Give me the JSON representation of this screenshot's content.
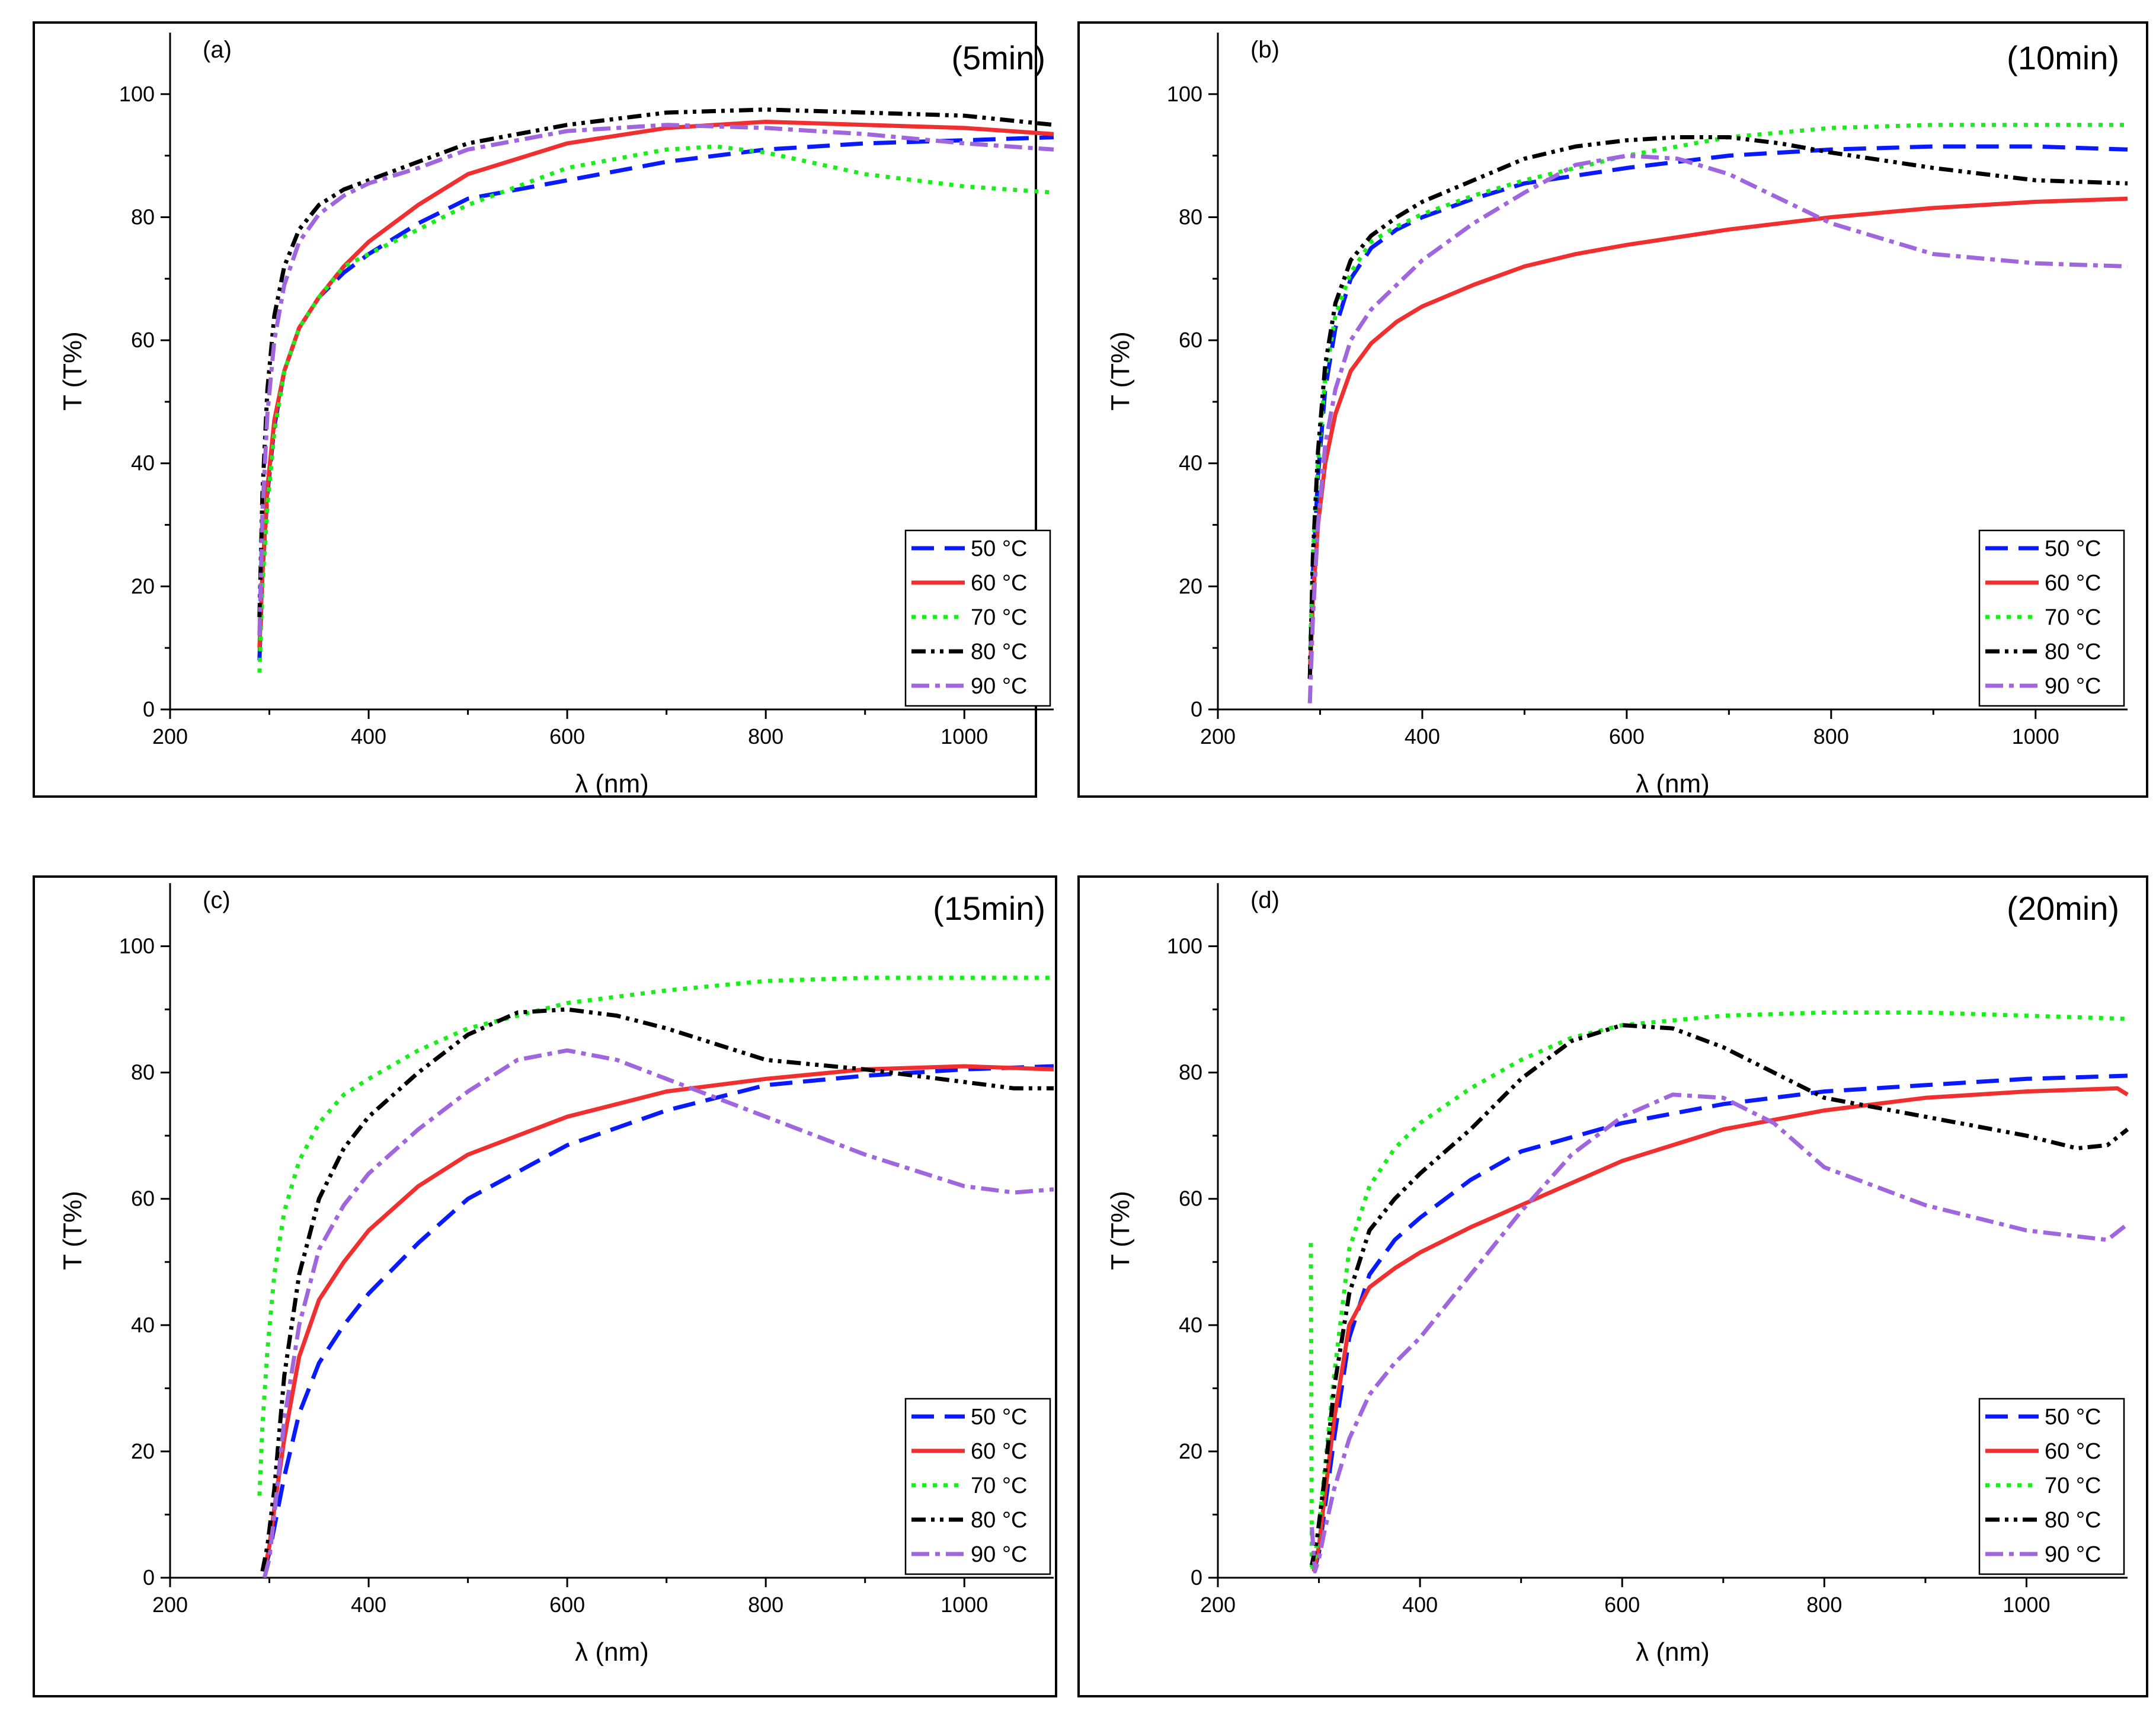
{
  "colors": {
    "50": "#0a1aff",
    "60": "#f03030",
    "70": "#1aee1a",
    "80": "#000000",
    "90": "#a066dd"
  },
  "dash_styles": {
    "50": "long-dash",
    "60": "solid",
    "70": "dot",
    "80": "dash-dot-dot",
    "90": "dash-dot"
  },
  "chart_data": [
    {
      "type": "line",
      "panel": "(a)",
      "title": "(5min)",
      "xlabel": "λ (nm)",
      "ylabel": "T (T%)",
      "xlim": [
        200,
        1090
      ],
      "ylim": [
        0,
        110
      ],
      "xticks": [
        200,
        400,
        600,
        800,
        1000
      ],
      "yticks": [
        0,
        20,
        40,
        60,
        80,
        100
      ],
      "legend_position": "bottom-right",
      "series": [
        {
          "name": "50 °C",
          "key": "50",
          "x": [
            290,
            293,
            298,
            305,
            315,
            330,
            350,
            375,
            400,
            450,
            500,
            600,
            700,
            800,
            900,
            1000,
            1090
          ],
          "values": [
            8,
            22,
            35,
            46,
            55,
            62,
            67,
            71,
            74,
            79,
            83,
            86,
            89,
            91,
            92,
            92.5,
            93
          ]
        },
        {
          "name": "60 °C",
          "key": "60",
          "x": [
            290,
            293,
            298,
            305,
            315,
            330,
            350,
            375,
            400,
            450,
            500,
            600,
            700,
            800,
            900,
            1000,
            1090
          ],
          "values": [
            10,
            22,
            36,
            47,
            55,
            62,
            67,
            72,
            76,
            82,
            87,
            92,
            94.5,
            95.5,
            95,
            94.5,
            93.5
          ]
        },
        {
          "name": "70 °C",
          "key": "70",
          "x": [
            290,
            293,
            298,
            305,
            315,
            330,
            350,
            375,
            400,
            450,
            500,
            600,
            700,
            750,
            800,
            900,
            1000,
            1090
          ],
          "values": [
            6,
            20,
            33,
            45,
            55,
            62,
            67,
            72,
            74,
            78,
            82,
            88,
            91,
            91.5,
            90.5,
            87,
            85,
            84
          ]
        },
        {
          "name": "80 °C",
          "key": "80",
          "x": [
            290,
            293,
            298,
            305,
            315,
            330,
            350,
            375,
            400,
            450,
            500,
            600,
            700,
            800,
            900,
            1000,
            1090
          ],
          "values": [
            15,
            35,
            52,
            64,
            72,
            78,
            82,
            84.5,
            86,
            89,
            92,
            95,
            97,
            97.5,
            97,
            96.5,
            95
          ]
        },
        {
          "name": "90 °C",
          "key": "90",
          "x": [
            290,
            293,
            298,
            305,
            315,
            330,
            350,
            375,
            400,
            450,
            500,
            600,
            700,
            800,
            900,
            1000,
            1090
          ],
          "values": [
            12,
            32,
            48,
            60,
            69,
            76,
            80.5,
            83.5,
            85.5,
            88,
            91,
            94,
            95,
            94.5,
            93.5,
            92,
            91
          ]
        }
      ]
    },
    {
      "type": "line",
      "panel": "(b)",
      "title": "(10min)",
      "xlabel": "λ (nm)",
      "ylabel": "T (T%)",
      "xlim": [
        200,
        1090
      ],
      "ylim": [
        0,
        110
      ],
      "xticks": [
        200,
        400,
        600,
        800,
        1000
      ],
      "yticks": [
        0,
        20,
        40,
        60,
        80,
        100
      ],
      "legend_position": "bottom-right",
      "series": [
        {
          "name": "50 °C",
          "key": "50",
          "x": [
            290,
            293,
            298,
            305,
            315,
            330,
            350,
            375,
            400,
            450,
            500,
            600,
            700,
            800,
            900,
            1000,
            1090
          ],
          "values": [
            5,
            22,
            38,
            52,
            62,
            70,
            75,
            78,
            80,
            83,
            85.5,
            88,
            90,
            91,
            91.5,
            91.5,
            91
          ]
        },
        {
          "name": "60 °C",
          "key": "60",
          "x": [
            290,
            293,
            298,
            305,
            315,
            330,
            350,
            375,
            400,
            450,
            500,
            550,
            600,
            700,
            800,
            900,
            1000,
            1090
          ],
          "values": [
            5,
            18,
            30,
            40,
            48,
            55,
            59.5,
            63,
            65.5,
            69,
            72,
            74,
            75.5,
            78,
            80,
            81.5,
            82.5,
            83
          ]
        },
        {
          "name": "70 °C",
          "key": "70",
          "x": [
            290,
            293,
            298,
            305,
            315,
            330,
            350,
            375,
            400,
            450,
            500,
            600,
            700,
            800,
            900,
            1000,
            1090
          ],
          "values": [
            8,
            25,
            40,
            54,
            64,
            71,
            76,
            78.5,
            80.5,
            83.5,
            86,
            90,
            93,
            94.5,
            95,
            95,
            95
          ]
        },
        {
          "name": "80 °C",
          "key": "80",
          "x": [
            290,
            293,
            298,
            305,
            315,
            330,
            350,
            375,
            400,
            450,
            500,
            550,
            600,
            650,
            700,
            750,
            800,
            900,
            1000,
            1090
          ],
          "values": [
            5,
            25,
            42,
            56,
            66,
            73,
            77,
            80,
            82.5,
            86,
            89.5,
            91.5,
            92.5,
            93,
            93,
            92,
            90.5,
            88,
            86,
            85.5
          ]
        },
        {
          "name": "90 °C",
          "key": "90",
          "x": [
            290,
            293,
            298,
            305,
            315,
            330,
            350,
            375,
            400,
            450,
            500,
            550,
            600,
            650,
            700,
            800,
            900,
            1000,
            1090
          ],
          "values": [
            1,
            15,
            30,
            43,
            52,
            60,
            65,
            69,
            73,
            79,
            84,
            88.5,
            90,
            89.5,
            87,
            79,
            74,
            72.5,
            72
          ]
        }
      ]
    },
    {
      "type": "line",
      "panel": "(c)",
      "title": "(15min)",
      "xlabel": "λ (nm)",
      "ylabel": "T (T%)",
      "xlim": [
        200,
        1090
      ],
      "ylim": [
        0,
        110
      ],
      "xticks": [
        200,
        400,
        600,
        800,
        1000
      ],
      "yticks": [
        0,
        20,
        40,
        60,
        80,
        100
      ],
      "legend_position": "bottom-right",
      "series": [
        {
          "name": "50 °C",
          "key": "50",
          "x": [
            295,
            300,
            305,
            315,
            330,
            350,
            375,
            400,
            450,
            500,
            600,
            700,
            800,
            900,
            1000,
            1090
          ],
          "values": [
            1,
            4,
            8,
            16,
            26,
            34,
            40,
            45,
            53,
            60,
            68.5,
            74,
            78,
            79.5,
            80.5,
            81
          ]
        },
        {
          "name": "60 °C",
          "key": "60",
          "x": [
            295,
            300,
            305,
            315,
            330,
            350,
            375,
            400,
            450,
            500,
            600,
            700,
            800,
            900,
            1000,
            1090
          ],
          "values": [
            1,
            5,
            11,
            22,
            35,
            44,
            50,
            55,
            62,
            67,
            73,
            77,
            79,
            80.5,
            81,
            80.5
          ]
        },
        {
          "name": "70 °C",
          "key": "70",
          "x": [
            290,
            293,
            298,
            305,
            315,
            330,
            350,
            375,
            400,
            450,
            500,
            600,
            700,
            800,
            900,
            1000,
            1090
          ],
          "values": [
            13,
            24,
            36,
            48,
            58,
            66,
            72,
            76.5,
            79,
            83.5,
            87,
            91,
            93,
            94.5,
            95,
            95,
            95
          ]
        },
        {
          "name": "80 °C",
          "key": "80",
          "x": [
            293,
            298,
            305,
            315,
            330,
            350,
            375,
            400,
            450,
            500,
            550,
            600,
            650,
            700,
            800,
            900,
            1000,
            1050,
            1090
          ],
          "values": [
            1,
            5,
            14,
            32,
            48,
            60,
            68,
            73,
            80,
            86,
            89.5,
            90,
            89,
            87,
            82,
            80.5,
            78.5,
            77.5,
            77.5
          ]
        },
        {
          "name": "90 °C",
          "key": "90",
          "x": [
            295,
            300,
            305,
            315,
            330,
            350,
            375,
            400,
            450,
            500,
            550,
            600,
            650,
            700,
            800,
            900,
            1000,
            1050,
            1090
          ],
          "values": [
            0,
            3,
            10,
            25,
            40,
            52,
            59,
            64,
            71,
            77,
            82,
            83.5,
            82,
            79,
            73,
            67,
            62,
            61,
            61.5
          ]
        }
      ]
    },
    {
      "type": "line",
      "panel": "(d)",
      "title": "(20min)",
      "xlabel": "λ (nm)",
      "ylabel": "T (T%)",
      "xlim": [
        200,
        1100
      ],
      "ylim": [
        0,
        110
      ],
      "xticks": [
        200,
        400,
        600,
        800,
        1000
      ],
      "yticks": [
        0,
        20,
        40,
        60,
        80,
        100
      ],
      "legend_position": "bottom-right",
      "series": [
        {
          "name": "50 °C",
          "key": "50",
          "x": [
            295,
            300,
            305,
            315,
            330,
            350,
            375,
            400,
            450,
            500,
            600,
            700,
            800,
            900,
            1000,
            1100
          ],
          "values": [
            1,
            4,
            10,
            22,
            38,
            48,
            53.5,
            57,
            63,
            67.5,
            72,
            75,
            77,
            78,
            79,
            79.5
          ]
        },
        {
          "name": "60 °C",
          "key": "60",
          "x": [
            295,
            300,
            305,
            315,
            330,
            350,
            375,
            400,
            450,
            500,
            600,
            700,
            800,
            900,
            1000,
            1090,
            1100
          ],
          "values": [
            1,
            5,
            12,
            25,
            40,
            46,
            49,
            51.5,
            55.5,
            59,
            66,
            71,
            74,
            76,
            77,
            77.5,
            76.5
          ]
        },
        {
          "name": "70 °C",
          "key": "70",
          "x": [
            292,
            293,
            296,
            300,
            305,
            315,
            330,
            350,
            375,
            400,
            450,
            500,
            550,
            600,
            700,
            800,
            900,
            1000,
            1100
          ],
          "values": [
            53,
            1,
            3,
            8,
            16,
            32,
            52,
            62,
            68,
            72,
            77.5,
            82,
            85.5,
            87.5,
            89,
            89.5,
            89.5,
            89,
            88.5
          ]
        },
        {
          "name": "80 °C",
          "key": "80",
          "x": [
            293,
            298,
            305,
            315,
            330,
            350,
            375,
            400,
            450,
            500,
            550,
            600,
            650,
            700,
            800,
            900,
            1000,
            1050,
            1080,
            1100
          ],
          "values": [
            2,
            6,
            15,
            30,
            45,
            55,
            60,
            64,
            71,
            79,
            85,
            87.5,
            87,
            84,
            76,
            73,
            70,
            68,
            68.5,
            71
          ]
        },
        {
          "name": "90 °C",
          "key": "90",
          "x": [
            293,
            296,
            300,
            305,
            315,
            330,
            350,
            375,
            400,
            450,
            500,
            550,
            600,
            650,
            700,
            750,
            800,
            900,
            1000,
            1080,
            1100
          ],
          "values": [
            8,
            1,
            3,
            7,
            14,
            22,
            29,
            34,
            38,
            48,
            58,
            67,
            73,
            76.5,
            76,
            72,
            65,
            59,
            55,
            53.5,
            56
          ]
        }
      ]
    }
  ]
}
